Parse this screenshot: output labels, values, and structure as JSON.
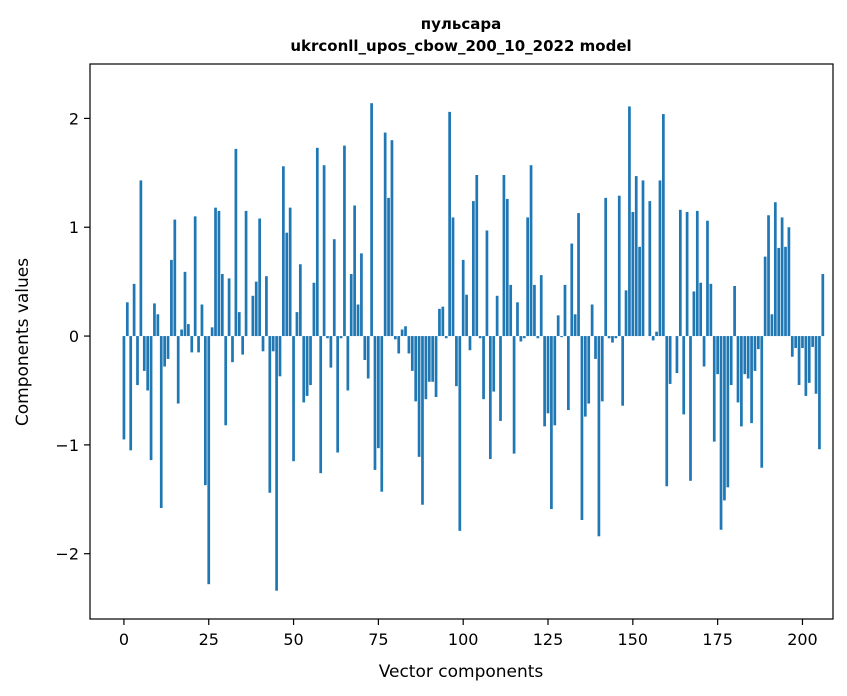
{
  "chart_data": {
    "type": "bar",
    "title_line1": "пульсара",
    "title_line2": "ukrconll_upos_cbow_200_10_2022 model",
    "xlabel": "Vector components",
    "ylabel": "Components values",
    "xlim": [
      -10,
      209
    ],
    "ylim": [
      -2.6,
      2.5
    ],
    "xticks": [
      0,
      25,
      50,
      75,
      100,
      125,
      150,
      175,
      200
    ],
    "yticks": [
      -2,
      -1,
      0,
      1,
      2
    ],
    "xtick_labels": [
      "0",
      "25",
      "50",
      "75",
      "100",
      "125",
      "150",
      "175",
      "200"
    ],
    "ytick_labels": [
      "−2",
      "−1",
      "0",
      "1",
      "2"
    ],
    "bar_color": "#1f77b4",
    "grid": false,
    "values": [
      -0.95,
      0.31,
      -1.05,
      0.48,
      -0.45,
      1.43,
      -0.32,
      -0.5,
      -1.14,
      0.3,
      0.2,
      -1.58,
      -0.28,
      -0.21,
      0.7,
      1.07,
      -0.62,
      0.06,
      0.59,
      0.11,
      -0.15,
      1.1,
      -0.15,
      0.29,
      -1.37,
      -2.28,
      0.08,
      1.18,
      1.15,
      0.57,
      -0.82,
      0.53,
      -0.24,
      1.72,
      0.22,
      -0.17,
      1.15,
      0.0,
      0.37,
      0.5,
      1.08,
      -0.14,
      0.55,
      -1.44,
      -0.14,
      -2.34,
      -0.37,
      1.56,
      0.95,
      1.18,
      -1.15,
      0.22,
      0.66,
      -0.61,
      -0.55,
      -0.45,
      0.49,
      1.73,
      -1.26,
      1.57,
      -0.02,
      -0.29,
      0.89,
      -1.07,
      -0.02,
      1.75,
      -0.5,
      0.57,
      1.2,
      0.29,
      0.76,
      -0.22,
      -0.39,
      2.14,
      -1.23,
      -1.03,
      -1.43,
      1.87,
      1.27,
      1.8,
      -0.03,
      -0.16,
      0.06,
      0.09,
      -0.16,
      -0.32,
      -0.6,
      -1.11,
      -1.55,
      -0.58,
      -0.42,
      -0.42,
      -0.56,
      0.25,
      0.27,
      -0.02,
      2.06,
      1.09,
      -0.46,
      -1.79,
      0.7,
      0.38,
      -0.13,
      1.24,
      1.48,
      -0.02,
      -0.58,
      0.97,
      -1.13,
      -0.51,
      0.37,
      -0.78,
      1.48,
      1.26,
      0.47,
      -1.08,
      0.31,
      -0.05,
      -0.02,
      1.09,
      1.57,
      0.47,
      -0.02,
      0.56,
      -0.83,
      -0.71,
      -1.59,
      -0.82,
      0.19,
      -0.01,
      0.47,
      -0.68,
      0.85,
      0.2,
      1.13,
      -1.69,
      -0.74,
      -0.62,
      0.29,
      -0.21,
      -1.84,
      -0.6,
      1.27,
      -0.02,
      -0.06,
      -0.02,
      1.29,
      -0.64,
      0.42,
      2.11,
      1.14,
      1.47,
      0.82,
      1.43,
      0.0,
      1.24,
      -0.04,
      0.04,
      1.43,
      2.04,
      -1.38,
      -0.44,
      0.0,
      -0.34,
      1.16,
      -0.72,
      1.14,
      -1.33,
      0.41,
      1.15,
      0.49,
      -0.28,
      1.06,
      0.48,
      -0.97,
      -0.35,
      -1.78,
      -1.51,
      -1.39,
      -0.45,
      0.46,
      -0.61,
      -0.83,
      -0.35,
      -0.39,
      -0.8,
      -0.32,
      -0.12,
      -1.21,
      0.73,
      1.11,
      0.2,
      1.23,
      0.81,
      1.09,
      0.82,
      1.0,
      -0.19,
      -0.11,
      -0.45,
      -0.11,
      -0.55,
      -0.43,
      -0.1,
      -0.53,
      -1.04,
      0.57
    ]
  }
}
